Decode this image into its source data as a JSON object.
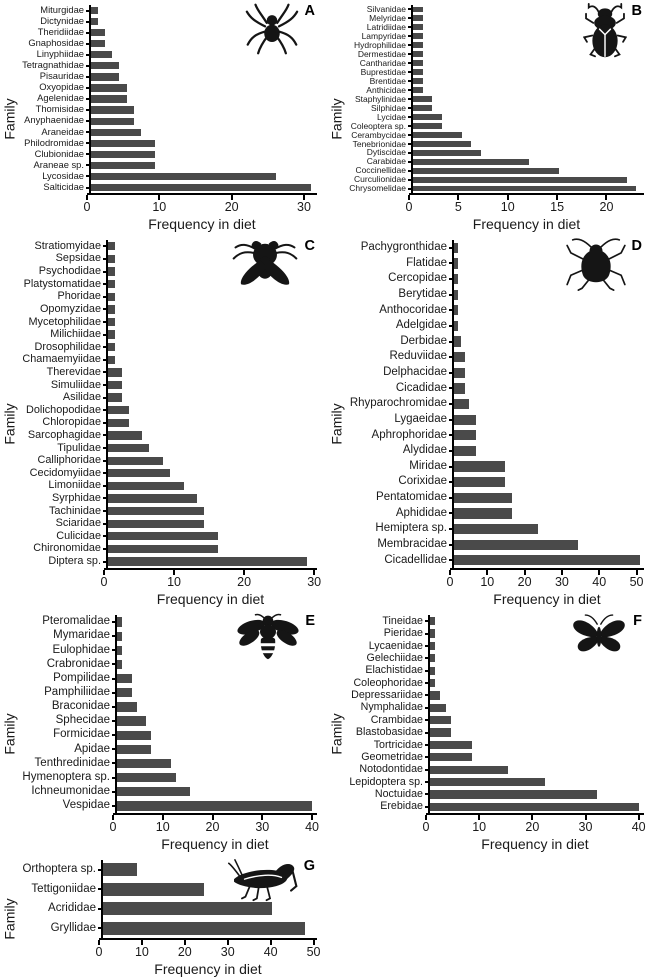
{
  "figure": {
    "ylabel": "Family",
    "xlabel": "Frequency in diet",
    "bar_color": "#4a4a4a",
    "axis_color": "#000000",
    "background": "#ffffff"
  },
  "chart_data": [
    {
      "type": "bar",
      "orientation": "horizontal",
      "panel": "A",
      "icon": "spider-icon",
      "ylabel": "Family",
      "xlabel": "Frequency in diet",
      "xlim": [
        0,
        31.8
      ],
      "xticks": [
        0,
        10,
        20,
        30
      ],
      "categories": [
        "Miturgidae",
        "Dictynidae",
        "Theridiidae",
        "Gnaphosidae",
        "Linyphiidae",
        "Tetragnathidae",
        "Pisauridae",
        "Oxyopidae",
        "Agelenidae",
        "Thomisidae",
        "Anyphaenidae",
        "Araneidae",
        "Philodromidae",
        "Clubionidae",
        "Araneae sp.",
        "Lycosidae",
        "Salticidae"
      ],
      "values": [
        1,
        1,
        2,
        2,
        3,
        4,
        4,
        5,
        5,
        6,
        6,
        7,
        9,
        9,
        9,
        26,
        31
      ]
    },
    {
      "type": "bar",
      "orientation": "horizontal",
      "panel": "B",
      "icon": "beetle-icon",
      "ylabel": "Family",
      "xlabel": "Frequency in diet",
      "xlim": [
        0,
        23.8
      ],
      "xticks": [
        0,
        5,
        10,
        15,
        20
      ],
      "categories": [
        "Silvanidae",
        "Melyridae",
        "Latridiidae",
        "Lampyridae",
        "Hydrophilidae",
        "Dermestidae",
        "Cantharidae",
        "Buprestidae",
        "Brentidae",
        "Anthicidae",
        "Staphylinidae",
        "Silphidae",
        "Lycidae",
        "Coleoptera sp.",
        "Cerambycidae",
        "Tenebrionidae",
        "Dytiscidae",
        "Carabidae",
        "Coccinellidae",
        "Curculionidae",
        "Chrysomelidae"
      ],
      "values": [
        1,
        1,
        1,
        1,
        1,
        1,
        1,
        1,
        1,
        1,
        2,
        2,
        3,
        3,
        5,
        6,
        7,
        12,
        15,
        22,
        23
      ]
    },
    {
      "type": "bar",
      "orientation": "horizontal",
      "panel": "C",
      "icon": "fly-icon",
      "ylabel": "Family",
      "xlabel": "Frequency in diet",
      "xlim": [
        0,
        30.4
      ],
      "xticks": [
        0,
        10,
        20,
        30
      ],
      "categories": [
        "Stratiomyidae",
        "Sepsidae",
        "Psychodidae",
        "Platystomatidae",
        "Phoridae",
        "Opomyzidae",
        "Mycetophilidae",
        "Milichiidae",
        "Drosophilidae",
        "Chamaemyiidae",
        "Therevidae",
        "Simuliidae",
        "Asilidae",
        "Dolichopodidae",
        "Chloropidae",
        "Sarcophagidae",
        "Tipulidae",
        "Calliphoridae",
        "Cecidomyiidae",
        "Limoniidae",
        "Syrphidae",
        "Tachinidae",
        "Sciaridae",
        "Culicidae",
        "Chironomidae",
        "Diptera sp."
      ],
      "values": [
        1,
        1,
        1,
        1,
        1,
        1,
        1,
        1,
        1,
        1,
        2,
        2,
        2,
        3,
        3,
        5,
        6,
        8,
        9,
        11,
        13,
        14,
        14,
        16,
        16,
        29
      ]
    },
    {
      "type": "bar",
      "orientation": "horizontal",
      "panel": "D",
      "icon": "true-bug-icon",
      "ylabel": "Family",
      "xlabel": "Frequency in diet",
      "xlim": [
        0,
        52
      ],
      "xticks": [
        0,
        10,
        20,
        30,
        40,
        50
      ],
      "categories": [
        "Pachygronthidae",
        "Flatidae",
        "Cercopidae",
        "Berytidae",
        "Anthocoridae",
        "Adelgidae",
        "Derbidae",
        "Reduviidae",
        "Delphacidae",
        "Cicadidae",
        "Rhyparochromidae",
        "Lygaeidae",
        "Aphrophoridae",
        "Alydidae",
        "Miridae",
        "Corixidae",
        "Pentatomidae",
        "Aphididae",
        "Hemiptera sp.",
        "Membracidae",
        "Cicadellidae"
      ],
      "values": [
        1,
        1,
        1,
        1,
        1,
        1,
        2,
        3,
        3,
        3,
        4,
        6,
        6,
        6,
        14,
        14,
        16,
        16,
        23,
        34,
        51
      ]
    },
    {
      "type": "bar",
      "orientation": "horizontal",
      "panel": "E",
      "icon": "bee-icon",
      "ylabel": "Family",
      "xlabel": "Frequency in diet",
      "xlim": [
        0,
        41
      ],
      "xticks": [
        0,
        10,
        20,
        30,
        40
      ],
      "categories": [
        "Pteromalidae",
        "Mymaridae",
        "Eulophidae",
        "Crabronidae",
        "Pompilidae",
        "Pamphiliidae",
        "Braconidae",
        "Sphecidae",
        "Formicidae",
        "Apidae",
        "Tenthredinidae",
        "Hymenoptera sp.",
        "Ichneumonidae",
        "Vespidae"
      ],
      "values": [
        1,
        1,
        1,
        1,
        3,
        3,
        4,
        6,
        7,
        7,
        11,
        12,
        15,
        40
      ]
    },
    {
      "type": "bar",
      "orientation": "horizontal",
      "panel": "F",
      "icon": "butterfly-icon",
      "ylabel": "Family",
      "xlabel": "Frequency in diet",
      "xlim": [
        0,
        41
      ],
      "xticks": [
        0,
        10,
        20,
        30,
        40
      ],
      "categories": [
        "Tineidae",
        "Pieridae",
        "Lycaenidae",
        "Gelechiidae",
        "Elachistidae",
        "Coleophoridae",
        "Depressariidae",
        "Nymphalidae",
        "Crambidae",
        "Blastobasidae",
        "Tortricidae",
        "Geometridae",
        "Notodontidae",
        "Lepidoptera sp.",
        "Noctuidae",
        "Erebidae"
      ],
      "values": [
        1,
        1,
        1,
        1,
        1,
        1,
        2,
        3,
        4,
        4,
        8,
        8,
        15,
        22,
        32,
        40
      ]
    },
    {
      "type": "bar",
      "orientation": "horizontal",
      "panel": "G",
      "icon": "grasshopper-icon",
      "ylabel": "Family",
      "xlabel": "Frequency in diet",
      "xlim": [
        0,
        50.8
      ],
      "xticks": [
        0,
        10,
        20,
        30,
        40,
        50
      ],
      "categories": [
        "Orthoptera sp.",
        "Tettigoniidae",
        "Acrididae",
        "Gryllidae"
      ],
      "values": [
        8,
        24,
        40,
        48
      ]
    }
  ]
}
